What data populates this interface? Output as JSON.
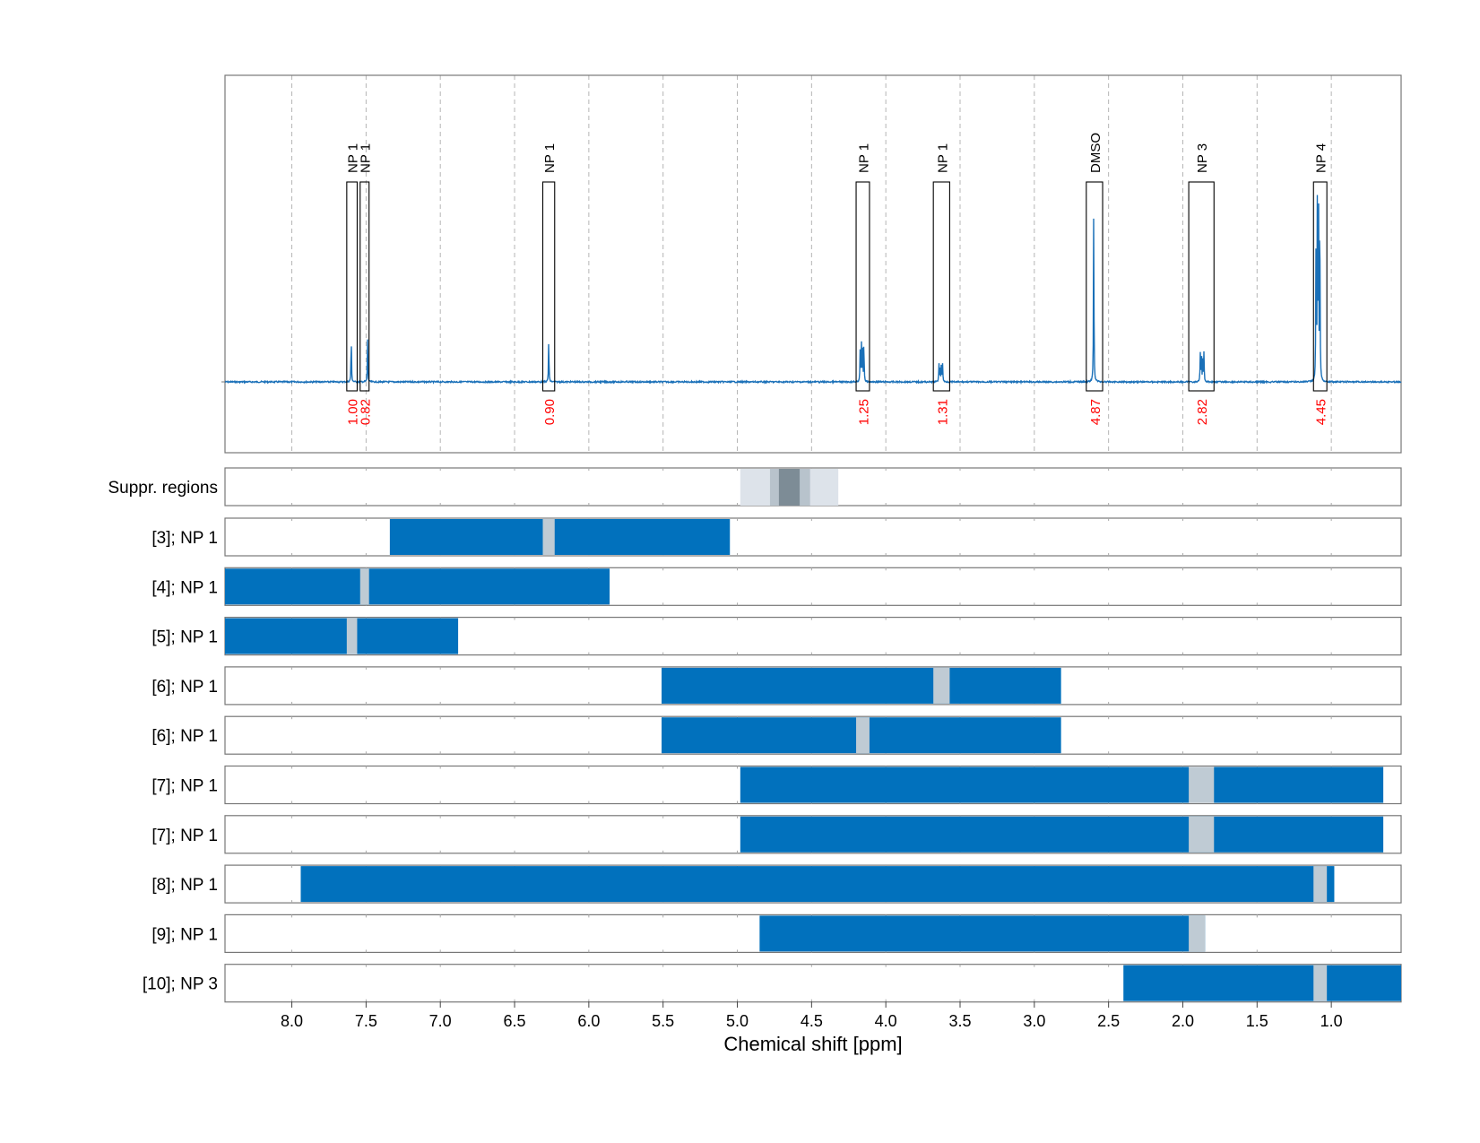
{
  "chart_data": {
    "type": "nmr-spectrum-with-range-tracks",
    "xlabel": "Chemical shift [ppm]",
    "x_reversed": true,
    "xlim": [
      8.45,
      0.53
    ],
    "x_ticks": [
      8.0,
      7.5,
      7.0,
      6.5,
      6.0,
      5.5,
      5.0,
      4.5,
      4.0,
      3.5,
      3.0,
      2.5,
      2.0,
      1.5,
      1.0
    ],
    "x_tick_labels": [
      "8.0",
      "7.5",
      "7.0",
      "6.5",
      "6.0",
      "5.5",
      "5.0",
      "4.5",
      "4.0",
      "3.5",
      "3.0",
      "2.5",
      "2.0",
      "1.5",
      "1.0"
    ],
    "grid": "vertical-dashed",
    "spectrum_color": "#1a70b8",
    "peaks": [
      {
        "ppm": 7.6,
        "height": 0.23,
        "shape": "single"
      },
      {
        "ppm": 7.49,
        "height": 0.2,
        "shape": "single"
      },
      {
        "ppm": 6.27,
        "height": 0.21,
        "shape": "single"
      },
      {
        "ppm": 4.16,
        "height": 0.19,
        "shape": "multiplet"
      },
      {
        "ppm": 3.63,
        "height": 0.09,
        "shape": "multiplet"
      },
      {
        "ppm": 2.6,
        "height": 0.83,
        "shape": "single"
      },
      {
        "ppm": 1.87,
        "height": 0.14,
        "shape": "multiplet"
      },
      {
        "ppm": 1.09,
        "height": 0.9,
        "shape": "multiplet"
      }
    ],
    "annotations": [
      {
        "label": "NP 1",
        "value": "1.00",
        "from": 7.63,
        "to": 7.56
      },
      {
        "label": "NP 1",
        "value": "0.82",
        "from": 7.54,
        "to": 7.48
      },
      {
        "label": "NP 1",
        "value": "0.90",
        "from": 6.31,
        "to": 6.23
      },
      {
        "label": "NP 1",
        "value": "1.25",
        "from": 4.2,
        "to": 4.11
      },
      {
        "label": "NP 1",
        "value": "1.31",
        "from": 3.68,
        "to": 3.57
      },
      {
        "label": "DMSO",
        "value": "4.87",
        "from": 2.65,
        "to": 2.54
      },
      {
        "label": "NP 3",
        "value": "2.82",
        "from": 1.96,
        "to": 1.79
      },
      {
        "label": "NP 4",
        "value": "4.45",
        "from": 1.12,
        "to": 1.03
      }
    ],
    "suppressed_regions": {
      "label": "Suppr. regions",
      "bands": [
        {
          "from": 4.98,
          "to": 4.32,
          "color": "#dde3ea"
        },
        {
          "from": 4.78,
          "to": 4.51,
          "color": "#b8c3cc"
        },
        {
          "from": 4.72,
          "to": 4.58,
          "color": "#7d8c96"
        }
      ]
    },
    "tracks": [
      {
        "label": "[3]; NP 1",
        "range": [
          7.34,
          5.05
        ],
        "marker": [
          6.31,
          6.23
        ]
      },
      {
        "label": "[4]; NP 1",
        "range": [
          8.45,
          5.86
        ],
        "marker": [
          7.54,
          7.48
        ]
      },
      {
        "label": "[5]; NP 1",
        "range": [
          8.45,
          6.88
        ],
        "marker": [
          7.63,
          7.56
        ]
      },
      {
        "label": "[6]; NP 1",
        "range": [
          5.51,
          2.82
        ],
        "marker": [
          3.68,
          3.57
        ]
      },
      {
        "label": "[6]; NP 1",
        "range": [
          5.51,
          2.82
        ],
        "marker": [
          4.2,
          4.11
        ]
      },
      {
        "label": "[7]; NP 1",
        "range": [
          4.98,
          0.65
        ],
        "marker": [
          1.96,
          1.79
        ]
      },
      {
        "label": "[7]; NP 1",
        "range": [
          4.98,
          0.65
        ],
        "marker": [
          1.96,
          1.79
        ]
      },
      {
        "label": "[8]; NP 1",
        "range": [
          7.94,
          0.98
        ],
        "marker": [
          1.12,
          1.03
        ]
      },
      {
        "label": "[9]; NP 1",
        "range": [
          4.85,
          1.85
        ],
        "marker": [
          1.96,
          1.85
        ]
      },
      {
        "label": "[10]; NP 3",
        "range": [
          2.4,
          0.53
        ],
        "marker": [
          1.12,
          1.03
        ]
      }
    ],
    "colors": {
      "range": "#0171bd",
      "marker": "#bfcbd4",
      "integral_text": "#ff0000"
    }
  }
}
